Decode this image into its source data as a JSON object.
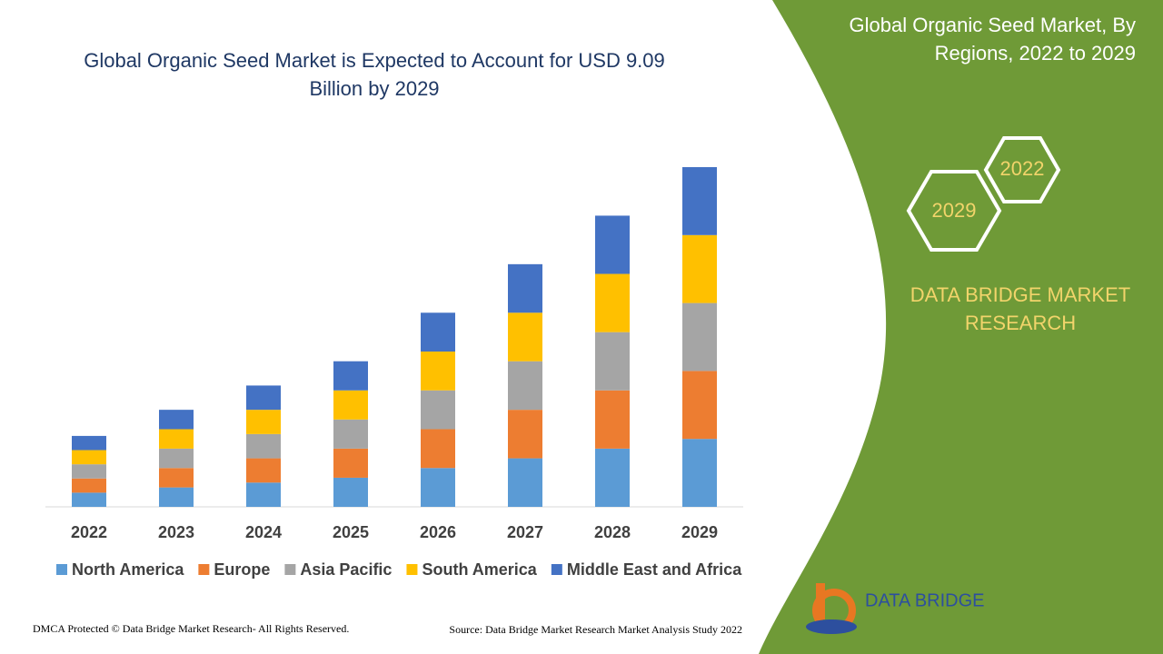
{
  "chart_data": {
    "type": "stacked_bar",
    "title": "Global Organic Seed Market is Expected to Account for USD 9.09 Billion by 2029",
    "categories": [
      "2022",
      "2023",
      "2024",
      "2025",
      "2026",
      "2027",
      "2028",
      "2029"
    ],
    "series": [
      {
        "name": "North America",
        "color": "#5b9bd5",
        "values": [
          0.38,
          0.52,
          0.65,
          0.78,
          1.04,
          1.3,
          1.56,
          1.82
        ]
      },
      {
        "name": "Europe",
        "color": "#ed7d31",
        "values": [
          0.38,
          0.52,
          0.65,
          0.78,
          1.04,
          1.3,
          1.56,
          1.82
        ]
      },
      {
        "name": "Asia Pacific",
        "color": "#a5a5a5",
        "values": [
          0.38,
          0.52,
          0.65,
          0.78,
          1.04,
          1.3,
          1.56,
          1.82
        ]
      },
      {
        "name": "South America",
        "color": "#ffc000",
        "values": [
          0.38,
          0.52,
          0.65,
          0.78,
          1.04,
          1.3,
          1.56,
          1.82
        ]
      },
      {
        "name": "Middle East and Africa",
        "color": "#4472c4",
        "values": [
          0.38,
          0.52,
          0.65,
          0.78,
          1.04,
          1.3,
          1.56,
          1.82
        ]
      }
    ]
  },
  "panel": {
    "title_line1": "Global Organic Seed Market, By",
    "title_line2": "Regions, 2022 to 2029",
    "hex_start": "2022",
    "hex_end": "2029",
    "brand_line1": "DATA BRIDGE MARKET",
    "brand_line2": "RESEARCH",
    "logo_text": "DATA BRIDGE"
  },
  "footer": {
    "copyright": "DMCA Protected © Data Bridge Market Research- All Rights Reserved.",
    "source": "Source: Data Bridge Market Research Market Analysis Study 2022"
  }
}
